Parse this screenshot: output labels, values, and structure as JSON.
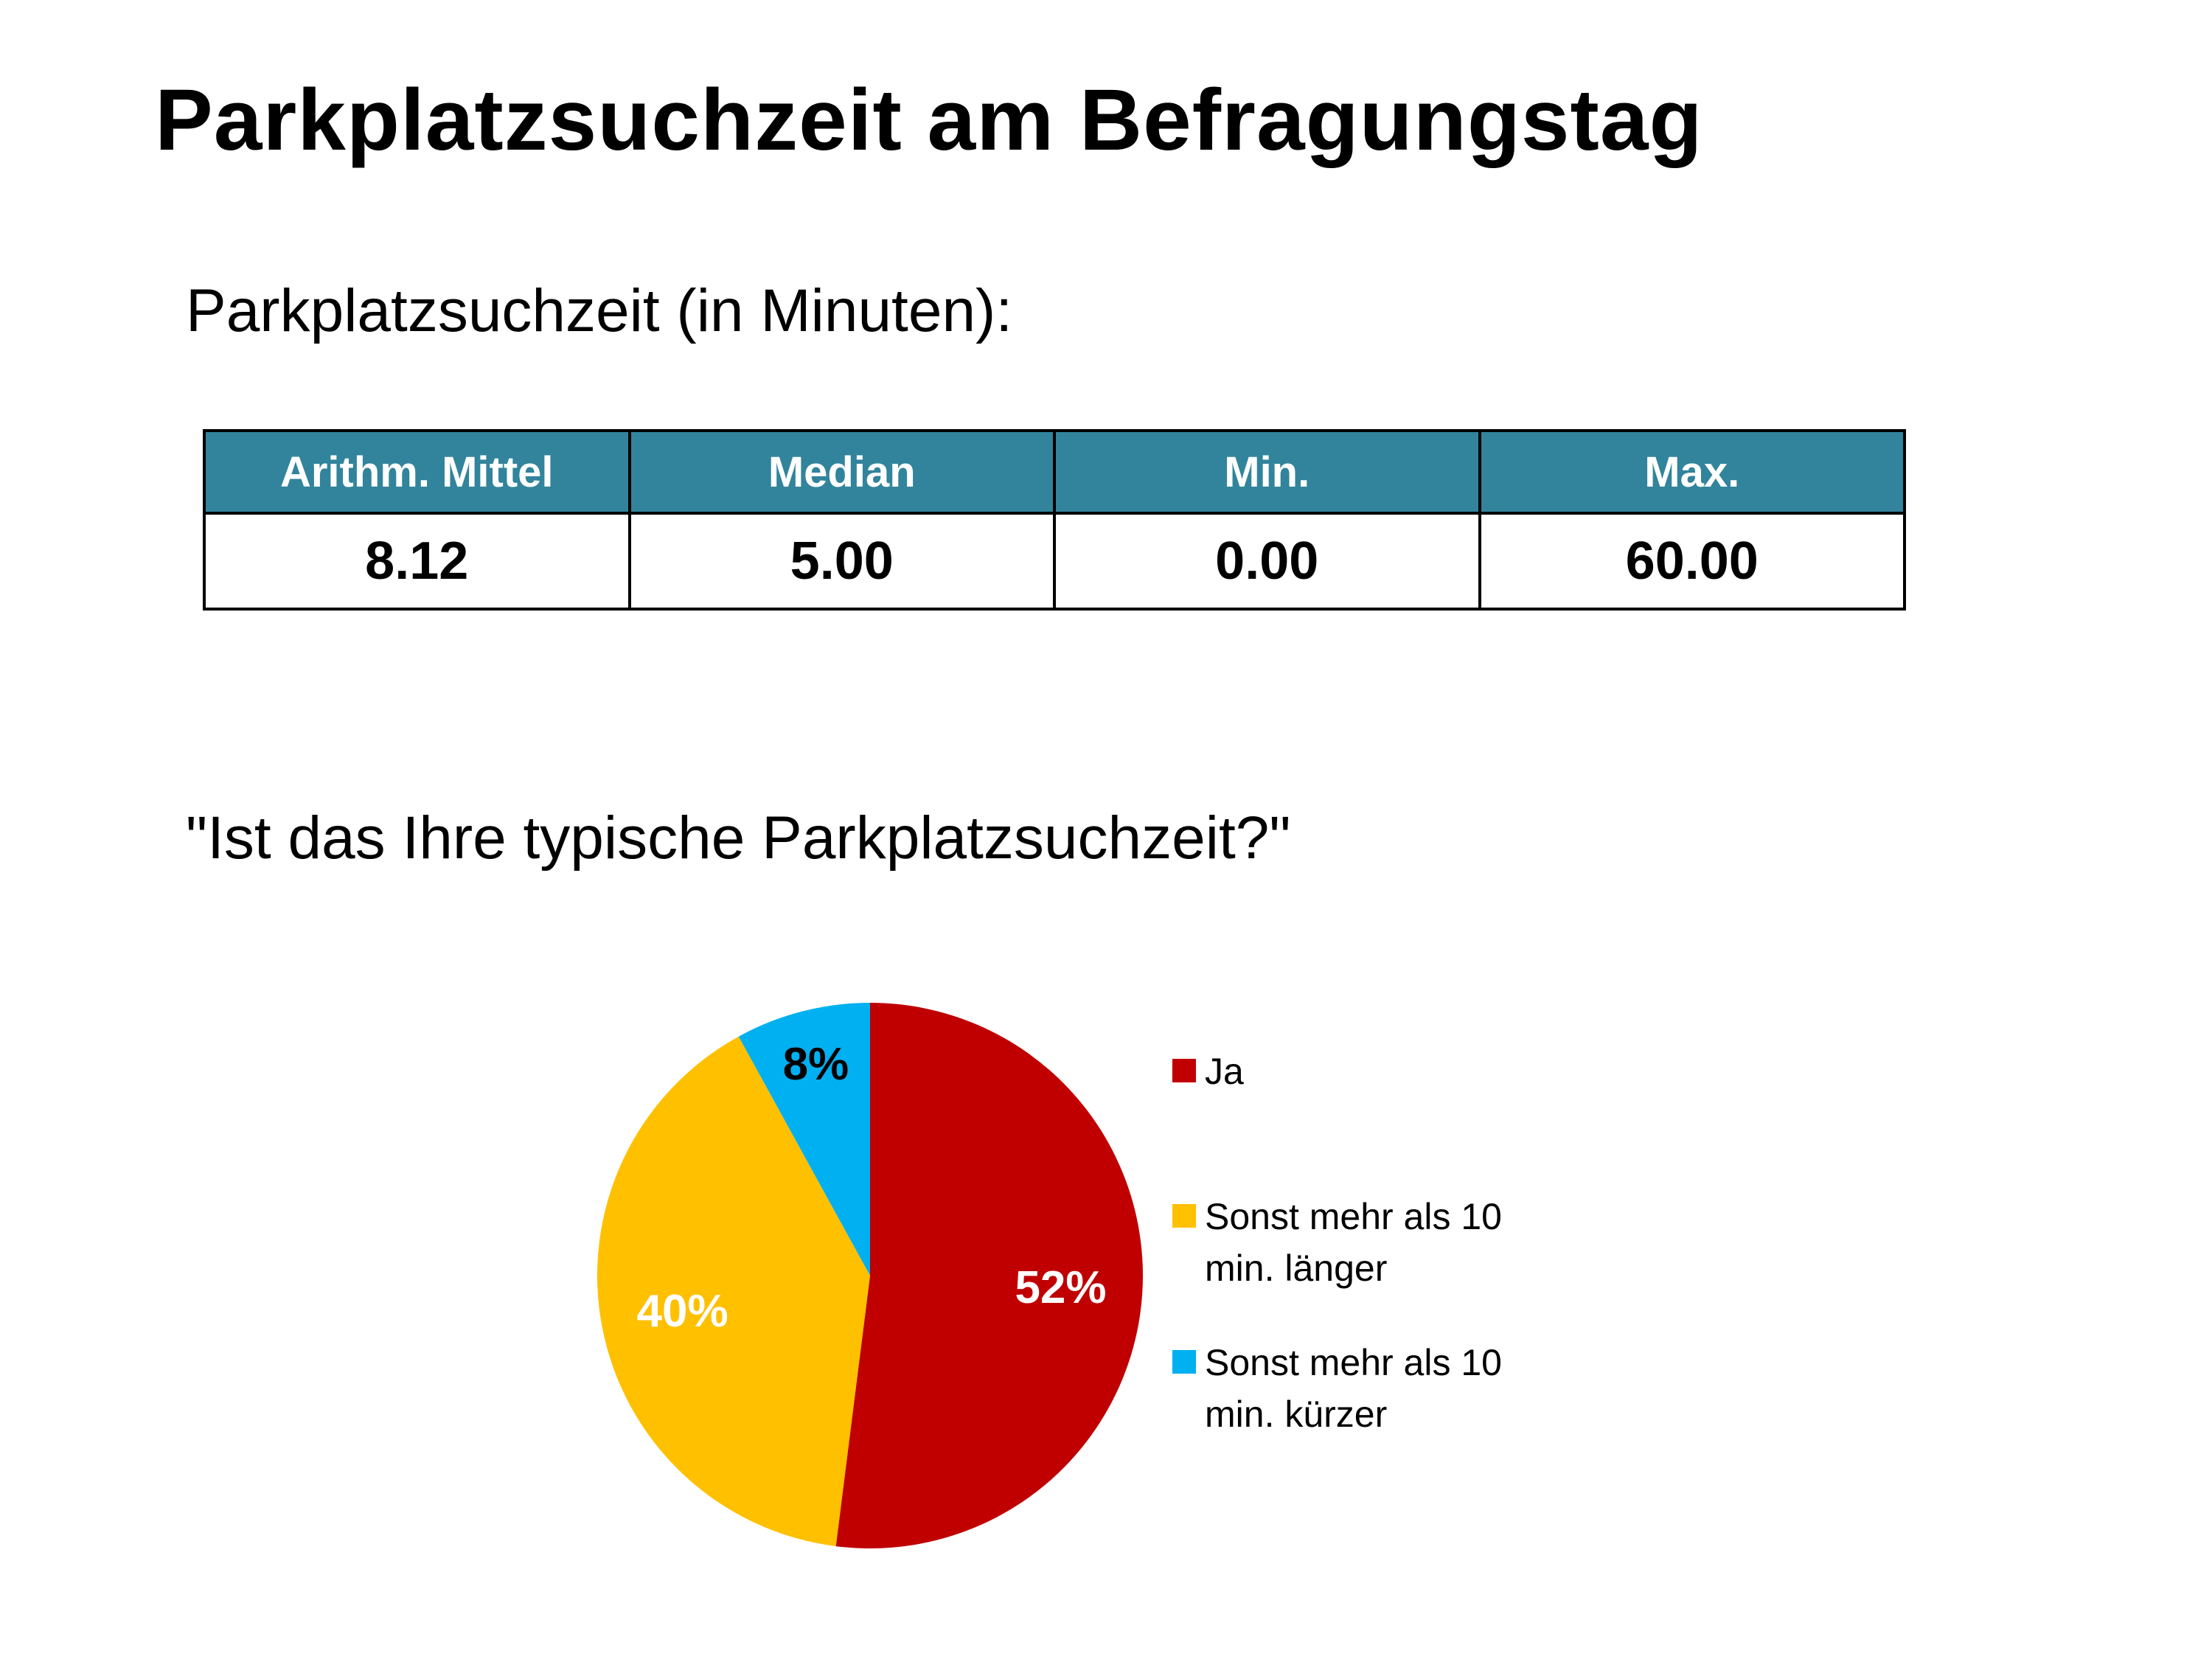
{
  "title": "Parkplatzsuchzeit am Befragungstag",
  "subtitle": "Parkplatzsuchzeit (in Minuten):",
  "stats_table": {
    "headers": [
      "Arithm. Mittel",
      "Median",
      "Min.",
      "Max."
    ],
    "values": [
      "8.12",
      "5.00",
      "0.00",
      "60.00"
    ]
  },
  "question": "\"Ist das Ihre typische Parkplatzsuchzeit?\"",
  "chart_data": {
    "type": "pie",
    "title": "",
    "categories": [
      "Ja",
      "Sonst mehr als 10 min. länger",
      "Sonst mehr als 10 min. kürzer"
    ],
    "values": [
      52,
      40,
      8
    ],
    "labels": [
      "52%",
      "40%",
      "8%"
    ],
    "colors": [
      "#c00000",
      "#ffc000",
      "#00b0f0"
    ],
    "label_colors": [
      "#ffffff",
      "#ffffff",
      "#000000"
    ],
    "legend_position": "right"
  },
  "legend": {
    "items": [
      {
        "label": "Ja",
        "color": "#c00000"
      },
      {
        "label": "Sonst mehr als 10 min. länger",
        "color": "#ffc000"
      },
      {
        "label": "Sonst mehr als 10 min. kürzer",
        "color": "#00b0f0"
      }
    ]
  }
}
